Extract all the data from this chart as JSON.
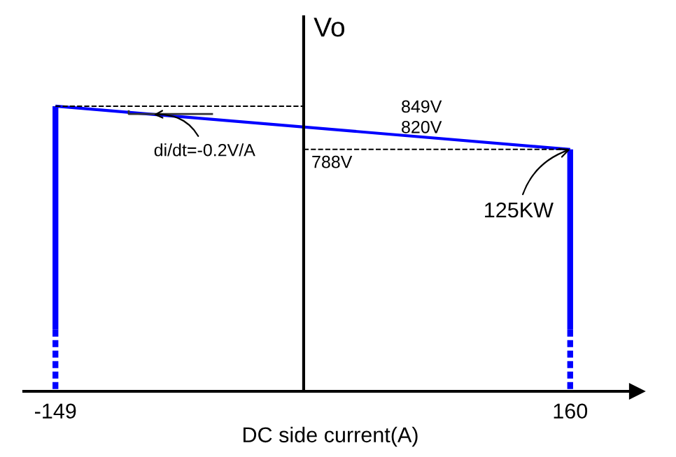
{
  "chart_data": {
    "type": "line",
    "xlabel": "DC side current(A)",
    "ylabel": "Vo",
    "xlim": [
      -168,
      200
    ],
    "ylim": [
      447,
      975
    ],
    "xticks": [
      -149,
      160
    ],
    "yticks": [
      {
        "value": 849,
        "label": "849V"
      },
      {
        "value": 820,
        "label": "820V"
      }
    ],
    "series": [
      {
        "x": [
          -149,
          160
        ],
        "values": [
          849,
          788
        ],
        "color": "#0000ff",
        "line_style": "solid"
      },
      {
        "x": [
          -149,
          -149
        ],
        "values": [
          849,
          534
        ],
        "color": "#0000ff",
        "line_style": "solid"
      },
      {
        "x": [
          -149,
          -149
        ],
        "values": [
          534,
          447
        ],
        "color": "#0000ff",
        "line_style": "dashed"
      },
      {
        "x": [
          160,
          160
        ],
        "values": [
          788,
          534
        ],
        "color": "#0000ff",
        "line_style": "solid"
      },
      {
        "x": [
          160,
          160
        ],
        "values": [
          534,
          447
        ],
        "color": "#0000ff",
        "line_style": "dashed"
      },
      {
        "x": [
          -149,
          0
        ],
        "values": [
          849,
          849
        ],
        "color": "#000000",
        "line_style": "dashed"
      },
      {
        "x": [
          0,
          160
        ],
        "values": [
          788,
          788
        ],
        "color": "#000000",
        "line_style": "dashed"
      }
    ],
    "annotations": [
      {
        "text": "di/dt=-0.2V/A",
        "x": -90,
        "y": 837
      },
      {
        "text": "125KW",
        "x": 160,
        "y": 788
      },
      {
        "text": "788V",
        "x": 0,
        "y": 788
      }
    ],
    "grid": false,
    "legend": false,
    "marker": "none"
  }
}
